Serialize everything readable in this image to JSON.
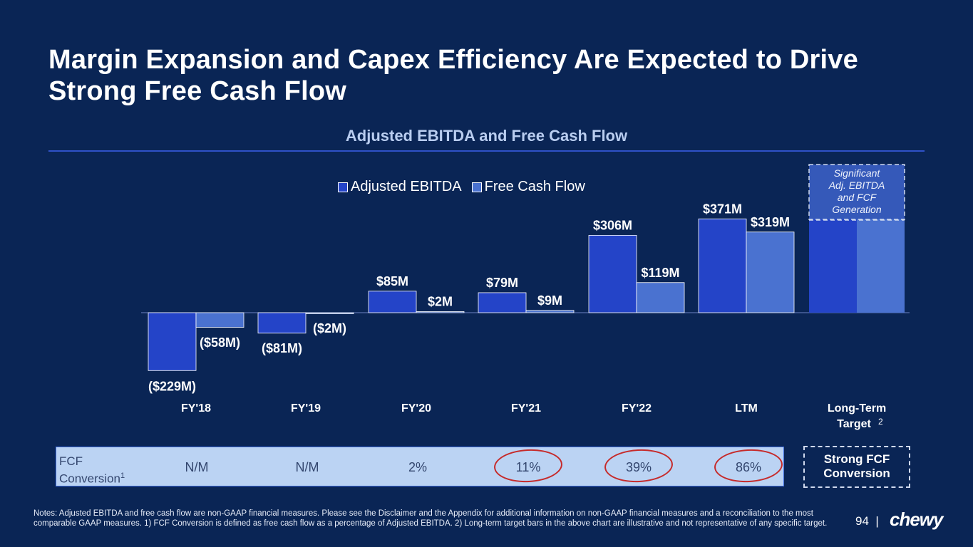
{
  "title": "Margin Expansion and Capex Efficiency Are Expected to Drive Strong Free Cash Flow",
  "subtitle": "Adjusted EBITDA and Free Cash Flow",
  "colors": {
    "background": "#0a2555",
    "ebitda": "#2444c8",
    "fcf": "#4a72d0",
    "fcf_box": "#bbd3f3",
    "circle": "#c62a2a"
  },
  "legend": {
    "ebitda": "Adjusted EBITDA",
    "fcf": "Free Cash Flow"
  },
  "chart_data": {
    "type": "bar",
    "title": "Adjusted EBITDA and Free Cash Flow",
    "categories": [
      "FY'18",
      "FY'19",
      "FY'20",
      "FY'21",
      "FY'22",
      "LTM",
      "Long-Term"
    ],
    "target_suffix": "Target",
    "target_sup": "2",
    "unit": "$M",
    "series": [
      {
        "name": "Adjusted EBITDA",
        "values": [
          -229,
          -81,
          85,
          79,
          306,
          371,
          null
        ],
        "labels": [
          "($229M)",
          "($81M)",
          "$85M",
          "$79M",
          "$306M",
          "$371M",
          ""
        ]
      },
      {
        "name": "Free Cash Flow",
        "values": [
          -58,
          -2,
          2,
          9,
          119,
          319,
          null
        ],
        "labels": [
          "($58M)",
          "($2M)",
          "$2M",
          "$9M",
          "$119M",
          "$319M",
          ""
        ]
      }
    ],
    "target_illustrative_values": [
      371,
      371
    ],
    "target_annotation": [
      "Significant",
      "Adj. EBITDA",
      "and FCF",
      "Generation"
    ],
    "ylim": [
      -260,
      420
    ]
  },
  "fcf_conversion": {
    "label_line1": "FCF",
    "label_line2": "Conversion",
    "label_sup": "1",
    "values": [
      "N/M",
      "N/M",
      "2%",
      "11%",
      "39%",
      "86%"
    ],
    "circled": [
      false,
      false,
      false,
      true,
      true,
      true
    ]
  },
  "strong_fcf": {
    "line1": "Strong FCF",
    "line2": "Conversion"
  },
  "notes": "Notes: Adjusted EBITDA and free cash flow are non-GAAP financial measures. Please see the Disclaimer and the Appendix for additional information on non-GAAP financial measures and a reconciliation to the most comparable GAAP measures. 1) FCF Conversion is defined as free cash flow as a percentage of Adjusted EBITDA. 2) Long-term target bars in the above chart are illustrative and not representative of any specific target.",
  "page_number": "94",
  "page_sep": "|",
  "logo_text": "chewy"
}
